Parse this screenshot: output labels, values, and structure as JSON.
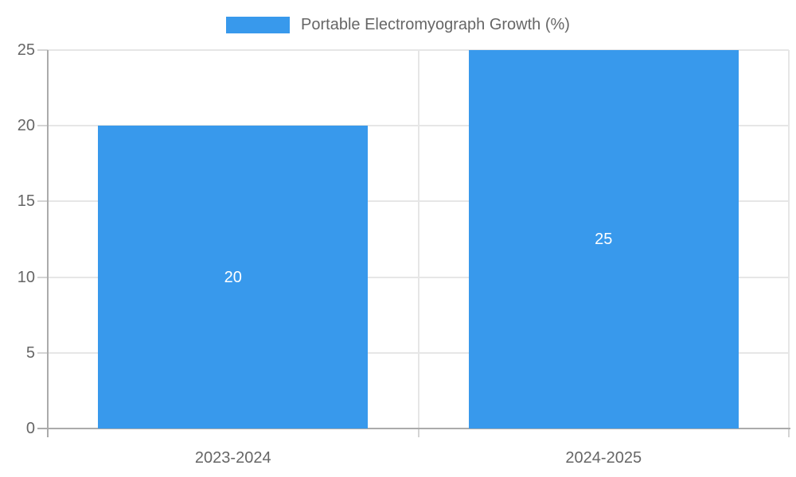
{
  "legend": {
    "label": "Portable Electromyograph Growth (%)"
  },
  "chart_data": {
    "type": "bar",
    "categories": [
      "2023-2024",
      "2024-2025"
    ],
    "values": [
      20,
      25
    ],
    "series_name": "Portable Electromyograph Growth (%)",
    "title": "",
    "xlabel": "",
    "ylabel": "",
    "ylim": [
      0,
      25
    ],
    "yticks": [
      0,
      5,
      10,
      15,
      20,
      25
    ],
    "grid": true,
    "legend_position": "top",
    "value_labels_inside_bars": true
  },
  "colors": {
    "bar": "#3899EC",
    "value_label": "#ffffff",
    "axis_line": "#ababab",
    "gridline": "#e6e6e6",
    "tick_mark": "#d4d4d4",
    "text": "#666666",
    "background": "#ffffff"
  }
}
